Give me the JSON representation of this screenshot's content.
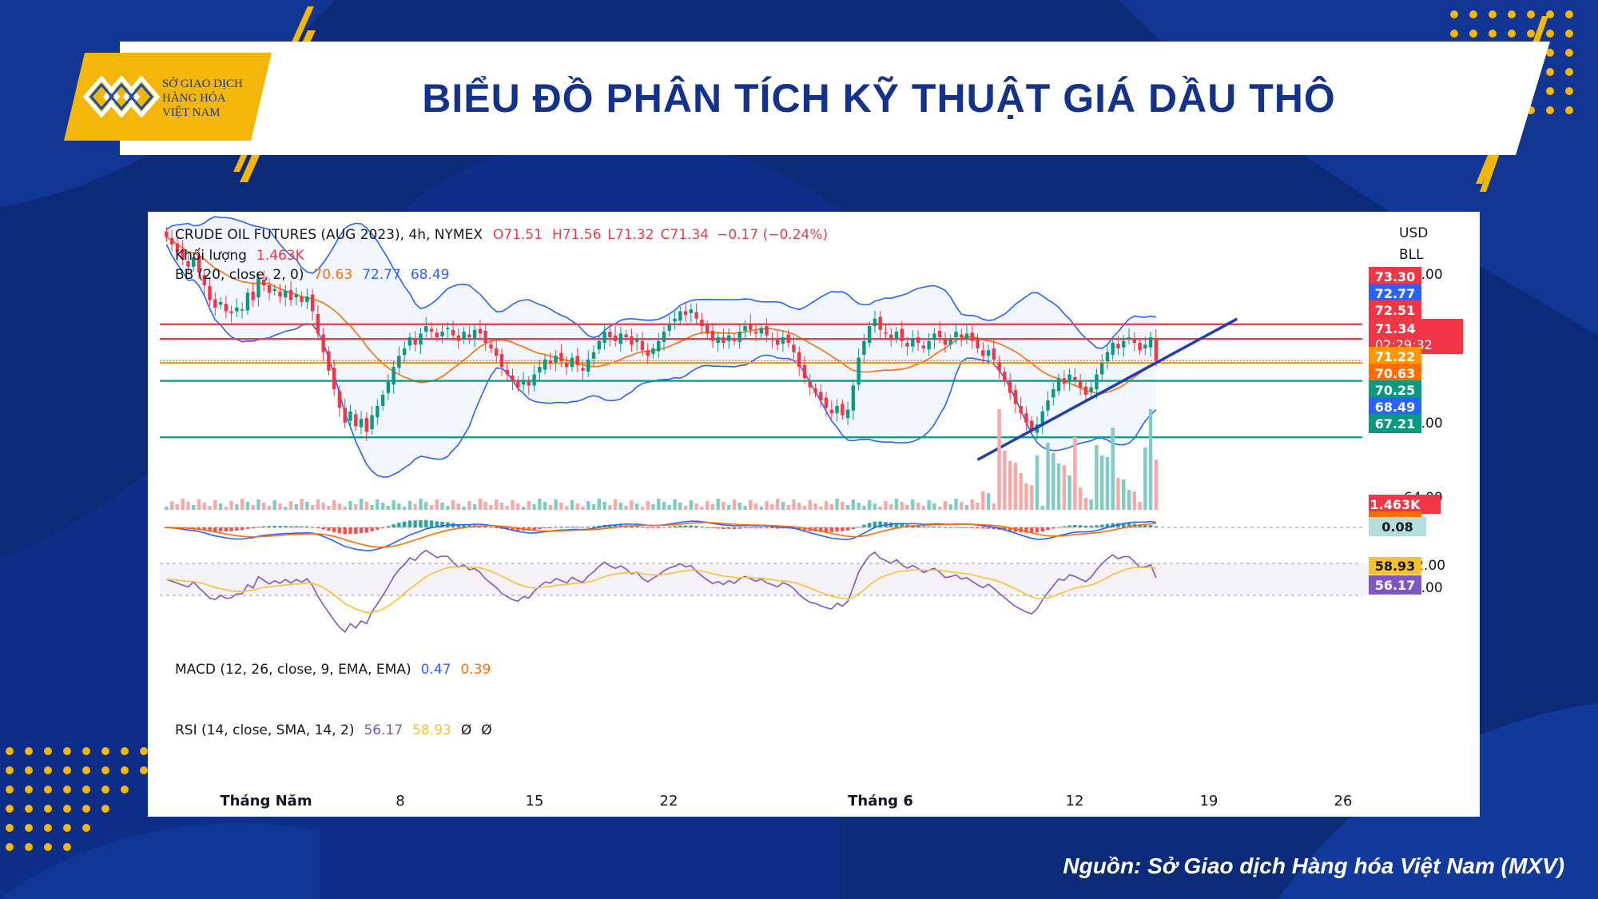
{
  "header": {
    "title": "BIỂU ĐỒ PHÂN TÍCH KỸ THUẬT GIÁ DẦU THÔ",
    "logo_lines": [
      "SỞ GIAO DỊCH",
      "HÀNG HÓA",
      "VIỆT NAM"
    ]
  },
  "footer": {
    "source": "Nguồn: Sở Giao dịch Hàng hóa Việt Nam (MXV)"
  },
  "colors": {
    "background": "#0b2a78",
    "accent": "#f5b60a",
    "title": "#14328c",
    "up": "#26a69a",
    "down": "#ef5350"
  },
  "chart_data": {
    "type": "candlestick",
    "title": "CRUDE OIL FUTURES (AUG 2023), 4h, NYMEX",
    "ohlc": {
      "O": "O71.51",
      "H": "H71.56",
      "L": "L71.32",
      "C": "C71.34",
      "change": "−0.17 (−0.24%)"
    },
    "currency": "USD",
    "unit": "BLL",
    "volume_label": "Khối lượng",
    "volume_value": "1.463K",
    "bb_label": "BB (20, close, 2, 0)",
    "bb_values": [
      "70.63",
      "72.77",
      "68.49"
    ],
    "macd_label": "MACD (12, 26, close, 9, EMA, EMA)",
    "macd_values": [
      "0.47",
      "0.39"
    ],
    "rsi_label": "RSI (14, close, SMA, 14, 2)",
    "rsi_values": [
      "56.17",
      "58.93",
      "Ø",
      "Ø"
    ],
    "y_ticks": [
      "76.00",
      "72.00",
      "68.00",
      "64.00"
    ],
    "ylim": [
      63,
      78.5
    ],
    "price_labels": [
      {
        "value": 73.3,
        "text": "73.30",
        "color": "#f23645"
      },
      {
        "value": 72.77,
        "text": "72.77",
        "color": "#2962ff"
      },
      {
        "value": 72.51,
        "text": "72.51",
        "color": "#f23645"
      },
      {
        "value": 71.34,
        "text": "71.34",
        "color": "#f23645",
        "timer": "02:29:32"
      },
      {
        "value": 71.22,
        "text": "71.22",
        "color": "#ff9800"
      },
      {
        "value": 70.63,
        "text": "70.63",
        "color": "#ff6d00"
      },
      {
        "value": 70.25,
        "text": "70.25",
        "color": "#089981"
      },
      {
        "value": 68.49,
        "text": "68.49",
        "color": "#2962ff"
      },
      {
        "value": 67.21,
        "text": "67.21",
        "color": "#089981"
      }
    ],
    "horizontal_levels": [
      {
        "value": 73.3,
        "color": "#f23645"
      },
      {
        "value": 72.51,
        "color": "#f23645"
      },
      {
        "value": 71.22,
        "color": "#ff9800"
      },
      {
        "value": 70.25,
        "color": "#089981"
      },
      {
        "value": 67.21,
        "color": "#089981"
      }
    ],
    "trendline": {
      "from": [
        "2023-06-05",
        66.0
      ],
      "to": [
        "2023-06-29",
        72.3
      ]
    },
    "volume_tag": "1.463K",
    "macd_tags": [
      "0.39",
      "0.08"
    ],
    "macd_axis": "−2.00",
    "rsi_tags": [
      "58.93",
      "56.17"
    ],
    "rsi_axis": "40.00",
    "x_ticks": [
      "Tháng Năm",
      "8",
      "15",
      "22",
      "Tháng 6",
      "12",
      "19",
      "26"
    ],
    "series_close_approx": [
      78.0,
      77.6,
      77.2,
      76.8,
      76.4,
      76.9,
      76.1,
      75.4,
      74.6,
      74.2,
      74.5,
      74.0,
      73.9,
      74.2,
      74.1,
      75.0,
      74.6,
      75.8,
      75.4,
      75.0,
      75.2,
      74.8,
      75.1,
      74.6,
      74.9,
      74.5,
      74.8,
      74.0,
      72.8,
      71.8,
      70.8,
      69.8,
      68.8,
      68.0,
      68.6,
      67.8,
      68.2,
      67.5,
      68.4,
      68.9,
      69.5,
      70.2,
      71.0,
      71.6,
      72.0,
      72.6,
      72.2,
      72.8,
      73.2,
      72.9,
      72.6,
      72.9,
      73.1,
      72.7,
      72.4,
      72.9,
      72.6,
      73.0,
      72.8,
      72.3,
      72.0,
      71.6,
      71.0,
      70.6,
      70.2,
      69.9,
      70.3,
      70.0,
      70.6,
      71.0,
      71.4,
      71.2,
      71.6,
      71.3,
      71.0,
      71.5,
      71.1,
      70.8,
      71.4,
      71.8,
      72.4,
      72.9,
      72.6,
      72.4,
      72.8,
      72.6,
      72.2,
      72.5,
      71.9,
      71.6,
      72.0,
      72.4,
      72.9,
      73.3,
      73.6,
      74.0,
      73.8,
      74.1,
      73.6,
      73.2,
      72.8,
      72.4,
      72.6,
      72.3,
      72.7,
      72.4,
      72.9,
      73.2,
      73.0,
      72.8,
      73.1,
      72.7,
      72.5,
      72.2,
      72.6,
      72.3,
      71.8,
      71.0,
      70.4,
      69.9,
      69.6,
      69.2,
      68.8,
      68.5,
      68.9,
      68.4,
      68.7,
      70.0,
      71.5,
      72.4,
      73.2,
      73.6,
      73.0,
      72.8,
      72.5,
      72.9,
      72.4,
      72.1,
      72.5,
      72.3,
      72.0,
      72.4,
      72.8,
      72.6,
      72.2,
      72.5,
      72.9,
      72.6,
      72.8,
      72.4,
      72.0,
      71.6,
      71.9,
      71.4,
      70.8,
      70.2,
      69.6,
      69.0,
      68.5,
      68.0,
      67.6,
      67.9,
      68.6,
      69.2,
      69.8,
      70.4,
      70.1,
      70.6,
      70.3,
      69.9,
      69.5,
      69.9,
      70.6,
      71.2,
      71.8,
      72.3,
      72.0,
      72.4,
      72.6,
      72.3,
      71.9,
      72.2,
      72.6,
      71.34
    ]
  }
}
